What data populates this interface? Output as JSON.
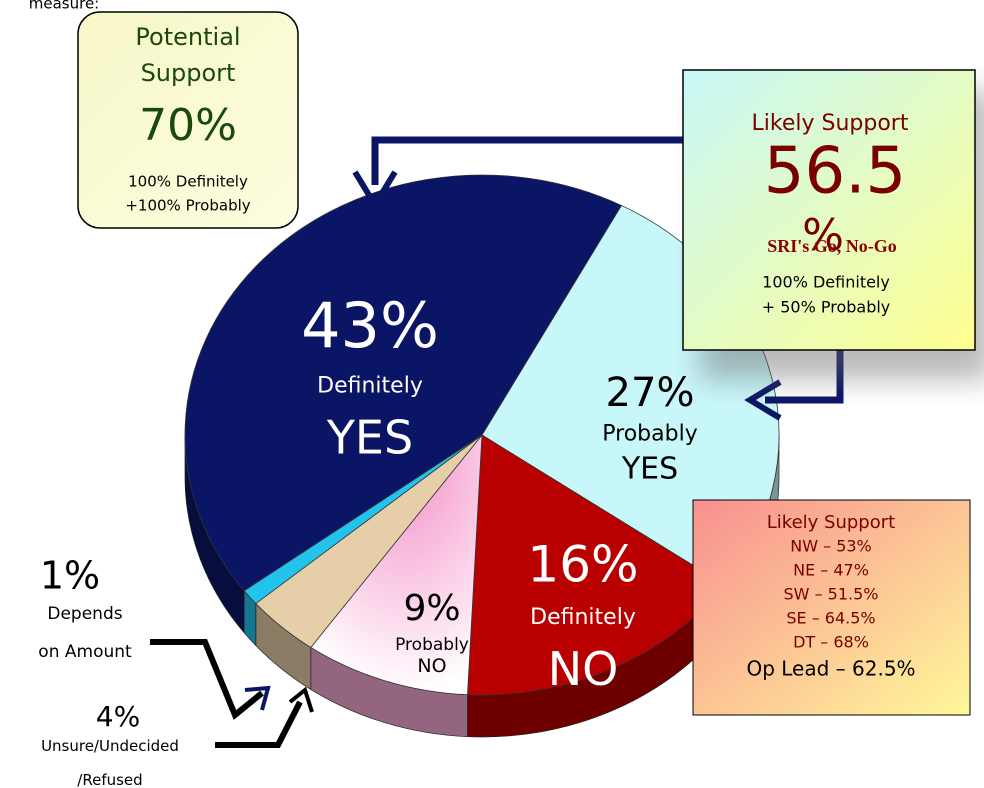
{
  "chart_data": {
    "type": "pie",
    "categories": [
      [
        "Definitely",
        "YES"
      ],
      [
        "Probably",
        "YES"
      ],
      [
        "Definitely",
        "NO"
      ],
      [
        "Probably",
        "NO"
      ],
      [
        "Unsure/Undecided",
        "/Refused"
      ],
      [
        "Depends",
        "on Amount"
      ]
    ],
    "values": [
      43,
      27,
      16,
      9,
      4,
      1
    ],
    "value_labels": [
      "43%",
      "27%",
      "16%",
      "9%",
      "4%",
      "1%"
    ],
    "colors": [
      "#0b1566",
      "#c8f7fa",
      "#b80000",
      "#f7a8d4",
      "#e6cfa8",
      "#22c4ee"
    ],
    "annotations": [
      {
        "lines": [
          "measure:"
        ]
      },
      {
        "lines": [
          "Potential",
          "Support",
          "70%",
          "100% Definitely",
          "+100% Probably"
        ]
      },
      {
        "lines": [
          "Likely Support",
          "56.5",
          "%",
          "SRI's Go, No-Go",
          "100% Definitely",
          "+ 50% Probably"
        ]
      },
      {
        "lines": [
          "Likely Support",
          "NW – 53%",
          "NE – 47%",
          "SW – 51.5%",
          "SE – 64.5%",
          "DT – 68%",
          "Op Lead – 62.5%"
        ]
      }
    ]
  }
}
